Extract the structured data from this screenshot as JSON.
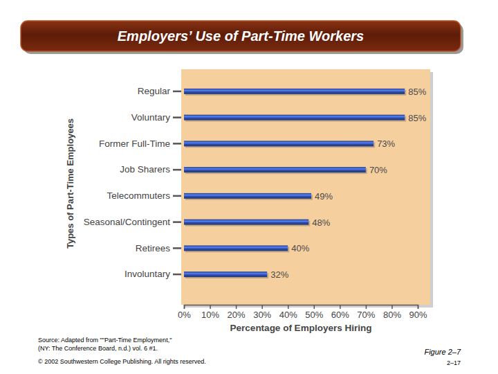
{
  "chart_data": {
    "type": "bar",
    "title": "Employers’ Use of Part-Time Workers",
    "categories": [
      "Regular",
      "Voluntary",
      "Former Full-Time",
      "Job Sharers",
      "Telecommuters",
      "Seasonal/Contingent",
      "Retirees",
      "Involuntary"
    ],
    "values": [
      85,
      85,
      73,
      70,
      49,
      48,
      40,
      32
    ],
    "value_labels": [
      "85%",
      "85%",
      "73%",
      "70%",
      "49%",
      "48%",
      "40%",
      "32%"
    ],
    "color": "#2f4aa0",
    "orientation": "horizontal",
    "data_labels": true,
    "grid": false,
    "xlabel": "Percentage of Employers Hiring",
    "ylabel": "Types of Part-Time Employees",
    "xlim": [
      0,
      90
    ],
    "xticks": [
      {
        "value": 0,
        "label": "0%"
      },
      {
        "value": 10,
        "label": "10%"
      },
      {
        "value": 20,
        "label": "20%"
      },
      {
        "value": 30,
        "label": "30%"
      },
      {
        "value": 40,
        "label": "40%"
      },
      {
        "value": 50,
        "label": "50%"
      },
      {
        "value": 60,
        "label": "60%"
      },
      {
        "value": 70,
        "label": "70%"
      },
      {
        "value": 80,
        "label": "80%"
      },
      {
        "value": 90,
        "label": "90%"
      }
    ],
    "annotations": [
      "Source: Adapted from \"\"Part-Time Employment,\"",
      "(NY: The Conference Board, n.d.) vol. 6 #1.",
      "© 2002 Southwestern College Publishing. All rights reserved.",
      "Figure 2–7",
      "2–17"
    ]
  }
}
